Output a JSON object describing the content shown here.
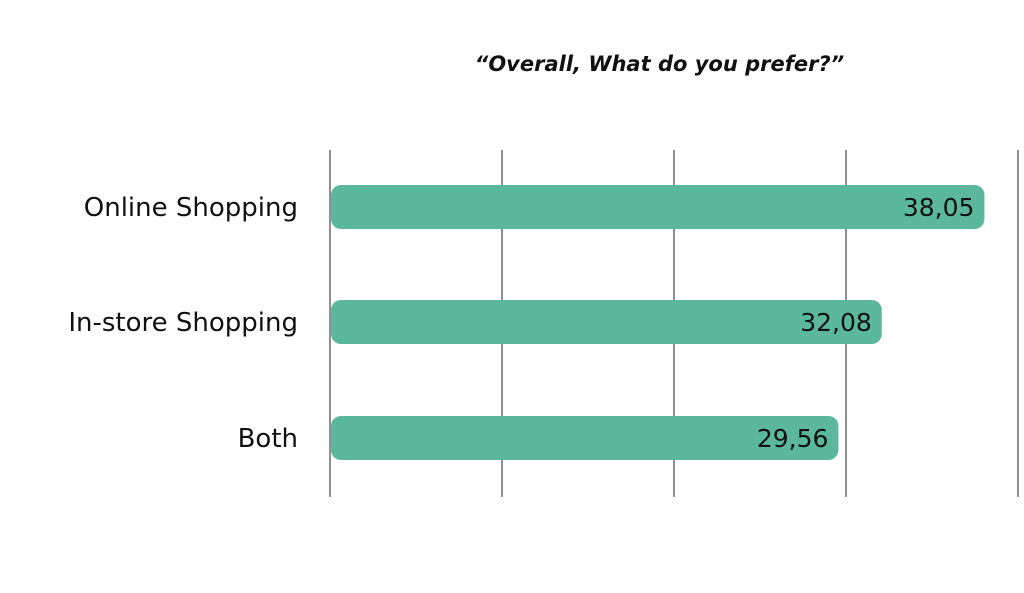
{
  "chart_data": {
    "type": "bar",
    "orientation": "horizontal",
    "title": "“Overall, What do you prefer?”",
    "categories": [
      "Online Shopping",
      "In-store Shopping",
      "Both"
    ],
    "values": [
      38.05,
      32.08,
      29.56
    ],
    "value_labels": [
      "38,05",
      "32,08",
      "29,56"
    ],
    "xlim": [
      0,
      40
    ],
    "grid": true,
    "legend": "none",
    "bar_color": "#5bb89d",
    "grid_color": "#555555"
  }
}
